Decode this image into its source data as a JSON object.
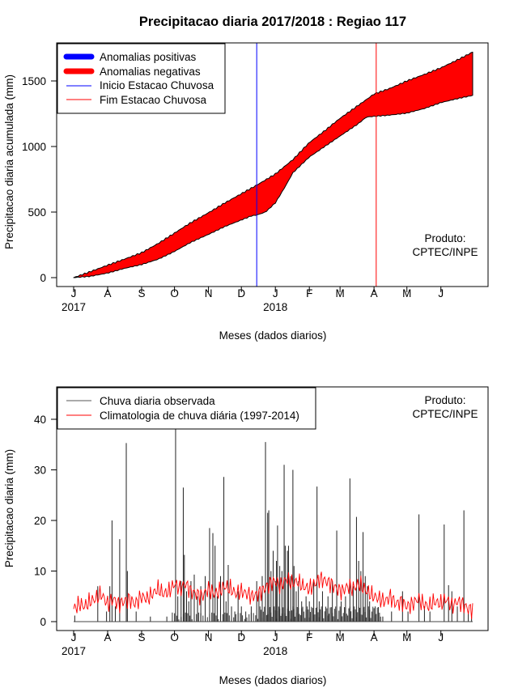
{
  "title": "Precipitacao diaria 2017/2018 : Regiao 117",
  "colors": {
    "fill_negative": "#ff0000",
    "fill_positive": "#0000ff",
    "onset_line": "#0000ff",
    "end_line": "#ff0000",
    "observed": "#000000",
    "climatology": "#ff0000"
  },
  "chart_data": [
    {
      "type": "area",
      "ylabel": "Precipitacao diaria acumulada (mm)",
      "xlabel": "Meses (dados diarios)",
      "ylim": [
        0,
        1750
      ],
      "yticks": [
        0,
        500,
        1000,
        1500
      ],
      "month_ticks": [
        {
          "label": "J",
          "day": 0
        },
        {
          "label": "A",
          "day": 31
        },
        {
          "label": "S",
          "day": 62
        },
        {
          "label": "O",
          "day": 92
        },
        {
          "label": "N",
          "day": 123
        },
        {
          "label": "D",
          "day": 153
        },
        {
          "label": "J",
          "day": 184
        },
        {
          "label": "F",
          "day": 215
        },
        {
          "label": "M",
          "day": 243
        },
        {
          "label": "A",
          "day": 274
        },
        {
          "label": "M",
          "day": 304
        },
        {
          "label": "J",
          "day": 335
        }
      ],
      "year_labels": [
        {
          "label": "2017",
          "day": 0
        },
        {
          "label": "2018",
          "day": 184
        }
      ],
      "legend": [
        {
          "label": "Anomalias positivas",
          "color": "#0000ff",
          "style": "thick"
        },
        {
          "label": "Anomalias negativas",
          "color": "#ff0000",
          "style": "thick"
        },
        {
          "label": "Inicio Estacao Chuvosa",
          "color": "#0000ff",
          "style": "thin"
        },
        {
          "label": "Fim Estacao Chuvosa",
          "color": "#ff0000",
          "style": "thin"
        }
      ],
      "legend_position": "top-left",
      "annotation": [
        "Produto:",
        "CPTEC/INPE"
      ],
      "onset_day": 167,
      "end_day": 276,
      "climatology_cumulative": {
        "days": [
          0,
          15,
          31,
          46,
          62,
          77,
          92,
          107,
          123,
          138,
          153,
          168,
          184,
          200,
          215,
          229,
          243,
          259,
          274,
          289,
          304,
          320,
          335,
          350,
          364
        ],
        "values": [
          0,
          45,
          95,
          140,
          190,
          260,
          340,
          420,
          495,
          570,
          640,
          710,
          790,
          900,
          1030,
          1120,
          1215,
          1310,
          1400,
          1445,
          1500,
          1550,
          1600,
          1660,
          1720
        ]
      },
      "observed_cumulative": {
        "days": [
          0,
          15,
          31,
          46,
          62,
          77,
          92,
          107,
          123,
          138,
          153,
          162,
          168,
          175,
          184,
          192,
          200,
          215,
          229,
          243,
          259,
          267,
          274,
          289,
          304,
          320,
          335,
          350,
          364
        ],
        "values": [
          0,
          10,
          35,
          70,
          100,
          140,
          200,
          270,
          330,
          390,
          440,
          470,
          480,
          500,
          570,
          680,
          800,
          920,
          1000,
          1080,
          1170,
          1225,
          1230,
          1240,
          1255,
          1290,
          1335,
          1365,
          1390
        ]
      }
    },
    {
      "type": "bar",
      "ylabel": "Precipitacao diaria (mm)",
      "xlabel": "Meses (dados diarios)",
      "ylim": [
        0,
        45
      ],
      "yticks": [
        0,
        10,
        20,
        30,
        40
      ],
      "legend": [
        {
          "label": "Chuva diaria observada",
          "color": "#000000"
        },
        {
          "label": "Climatologia de chuva diária (1997-2014)",
          "color": "#ff0000"
        }
      ],
      "legend_position": "top-left",
      "annotation": [
        "Produto:",
        "CPTEC/INPE"
      ],
      "observed_spikes": [
        {
          "day": 1,
          "value": 1.2
        },
        {
          "day": 22,
          "value": 7
        },
        {
          "day": 30,
          "value": 2
        },
        {
          "day": 33,
          "value": 7
        },
        {
          "day": 35,
          "value": 20
        },
        {
          "day": 38,
          "value": 3
        },
        {
          "day": 42,
          "value": 16.3
        },
        {
          "day": 48,
          "value": 35.3
        },
        {
          "day": 49,
          "value": 10
        },
        {
          "day": 57,
          "value": 2
        },
        {
          "day": 70,
          "value": 1
        },
        {
          "day": 85,
          "value": 1
        },
        {
          "day": 93,
          "value": 45
        },
        {
          "day": 95,
          "value": 5
        },
        {
          "day": 98,
          "value": 8
        },
        {
          "day": 100,
          "value": 26.5
        },
        {
          "day": 101,
          "value": 13.2
        },
        {
          "day": 103,
          "value": 6
        },
        {
          "day": 105,
          "value": 4
        },
        {
          "day": 107,
          "value": 8
        },
        {
          "day": 110,
          "value": 9.3
        },
        {
          "day": 113,
          "value": 5
        },
        {
          "day": 116,
          "value": 7
        },
        {
          "day": 120,
          "value": 9
        },
        {
          "day": 124,
          "value": 18.5
        },
        {
          "day": 127,
          "value": 17.5
        },
        {
          "day": 129,
          "value": 15
        },
        {
          "day": 131,
          "value": 5
        },
        {
          "day": 134,
          "value": 9
        },
        {
          "day": 137,
          "value": 28.6
        },
        {
          "day": 139,
          "value": 4
        },
        {
          "day": 141,
          "value": 11.2
        },
        {
          "day": 144,
          "value": 3
        },
        {
          "day": 147,
          "value": 2
        },
        {
          "day": 150,
          "value": 6
        },
        {
          "day": 153,
          "value": 3
        },
        {
          "day": 157,
          "value": 2
        },
        {
          "day": 162,
          "value": 3
        },
        {
          "day": 167,
          "value": 8
        },
        {
          "day": 169,
          "value": 6
        },
        {
          "day": 172,
          "value": 9
        },
        {
          "day": 175,
          "value": 35.5
        },
        {
          "day": 177,
          "value": 21.5
        },
        {
          "day": 178,
          "value": 22
        },
        {
          "day": 180,
          "value": 10
        },
        {
          "day": 182,
          "value": 14
        },
        {
          "day": 184,
          "value": 8
        },
        {
          "day": 185,
          "value": 12
        },
        {
          "day": 186,
          "value": 19
        },
        {
          "day": 188,
          "value": 11
        },
        {
          "day": 190,
          "value": 10
        },
        {
          "day": 192,
          "value": 31
        },
        {
          "day": 193,
          "value": 15
        },
        {
          "day": 195,
          "value": 14
        },
        {
          "day": 196,
          "value": 15
        },
        {
          "day": 198,
          "value": 9
        },
        {
          "day": 200,
          "value": 30
        },
        {
          "day": 201,
          "value": 11
        },
        {
          "day": 203,
          "value": 6
        },
        {
          "day": 205,
          "value": 8
        },
        {
          "day": 208,
          "value": 4
        },
        {
          "day": 212,
          "value": 5
        },
        {
          "day": 215,
          "value": 4
        },
        {
          "day": 219,
          "value": 8
        },
        {
          "day": 222,
          "value": 26.7
        },
        {
          "day": 224,
          "value": 4
        },
        {
          "day": 227,
          "value": 6
        },
        {
          "day": 232,
          "value": 5
        },
        {
          "day": 236,
          "value": 8
        },
        {
          "day": 240,
          "value": 18
        },
        {
          "day": 244,
          "value": 4
        },
        {
          "day": 248,
          "value": 5
        },
        {
          "day": 252,
          "value": 28.3
        },
        {
          "day": 255,
          "value": 7
        },
        {
          "day": 258,
          "value": 20.7
        },
        {
          "day": 260,
          "value": 12
        },
        {
          "day": 262,
          "value": 10
        },
        {
          "day": 264,
          "value": 17.7
        },
        {
          "day": 266,
          "value": 9
        },
        {
          "day": 268,
          "value": 7
        },
        {
          "day": 270,
          "value": 4
        },
        {
          "day": 275,
          "value": 3
        },
        {
          "day": 282,
          "value": 1
        },
        {
          "day": 290,
          "value": 2
        },
        {
          "day": 300,
          "value": 6
        },
        {
          "day": 305,
          "value": 2
        },
        {
          "day": 315,
          "value": 21.2
        },
        {
          "day": 320,
          "value": 3
        },
        {
          "day": 325,
          "value": 2
        },
        {
          "day": 338,
          "value": 19.2
        },
        {
          "day": 342,
          "value": 7.2
        },
        {
          "day": 345,
          "value": 6
        },
        {
          "day": 350,
          "value": 3
        },
        {
          "day": 356,
          "value": 22
        },
        {
          "day": 360,
          "value": 2
        },
        {
          "day": 363,
          "value": 1
        }
      ],
      "climatology": {
        "days": [
          0,
          5,
          10,
          15,
          20,
          25,
          31,
          36,
          41,
          46,
          51,
          56,
          62,
          67,
          72,
          77,
          82,
          87,
          92,
          97,
          102,
          107,
          112,
          117,
          123,
          128,
          133,
          138,
          143,
          148,
          153,
          158,
          163,
          168,
          174,
          179,
          184,
          189,
          194,
          199,
          204,
          209,
          215,
          220,
          225,
          230,
          235,
          240,
          245,
          250,
          255,
          260,
          265,
          270,
          274,
          279,
          284,
          289,
          294,
          299,
          304,
          309,
          314,
          319,
          324,
          329,
          335,
          340,
          345,
          350,
          355,
          360,
          364
        ],
        "values": [
          2.5,
          3.5,
          3,
          4,
          4.5,
          5.5,
          3.5,
          4.5,
          3.5,
          4,
          4.5,
          3.5,
          5,
          4.5,
          5.5,
          6.5,
          5.5,
          6,
          7.5,
          6.5,
          7.5,
          6,
          5.5,
          5,
          6.5,
          5.5,
          6,
          7,
          6.5,
          5.5,
          6,
          5.5,
          5,
          5.5,
          6.5,
          7.5,
          8,
          7,
          8.5,
          7.5,
          8,
          7,
          6.5,
          7.5,
          8.5,
          8,
          7.5,
          6.5,
          6,
          7,
          6.5,
          7.5,
          6.5,
          5.5,
          5,
          4.5,
          4,
          5,
          3.5,
          4,
          3,
          3.5,
          4.5,
          3.5,
          3,
          4,
          3.5,
          4.5,
          3,
          4,
          3.5,
          2.5,
          2.5
        ]
      }
    }
  ]
}
